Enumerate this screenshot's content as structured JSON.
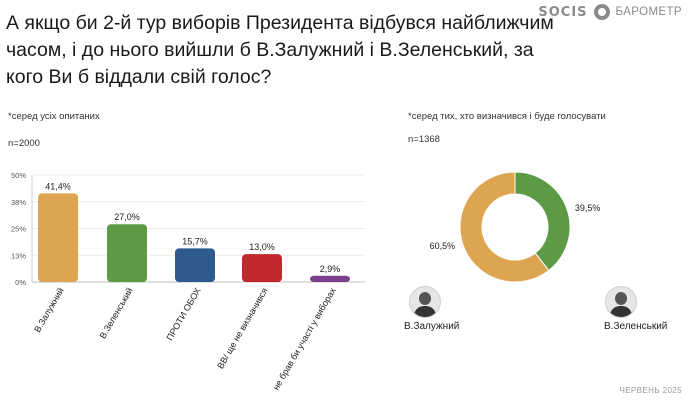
{
  "header": {
    "title": "А якщо би 2-й тур виборів Президента відбувся найближчим часом, і до нього вийшли б В.Залужний і В.Зеленський, за кого Ви б віддали свій голос?",
    "logo_socis": "SOCIS",
    "logo_barometr": "БАРОМЕТР"
  },
  "left_panel": {
    "note": "*серед усіх опитаних",
    "n": "n=2000"
  },
  "right_panel": {
    "note": "*серед тих, хто визначився і буде голосувати",
    "n": "n=1368"
  },
  "footer": "ЧЕРВЕНЬ 2025",
  "chart_data": [
    {
      "type": "bar",
      "y_ticks": [
        "0%",
        "13%",
        "25%",
        "38%",
        "50%"
      ],
      "ylim": [
        0,
        50
      ],
      "categories": [
        "В.Залужний",
        "В.Зеленський",
        "ПРОТИ ОБОХ",
        "ВВ/ ще не визначився",
        "не брав би участі у виборах"
      ],
      "values": [
        41.4,
        27.0,
        15.7,
        13.0,
        2.9
      ],
      "labels": [
        "41,4%",
        "27,0%",
        "15,7%",
        "13,0%",
        "2,9%"
      ],
      "colors": [
        "#DDA54F",
        "#5C9A45",
        "#2E5A8F",
        "#C2272E",
        "#7B3F8C"
      ]
    },
    {
      "type": "pie",
      "categories": [
        "В.Залужний",
        "В.Зеленський"
      ],
      "values": [
        60.5,
        39.5
      ],
      "labels": [
        "60,5%",
        "39,5%"
      ],
      "colors": [
        "#DDA54F",
        "#5C9A45"
      ]
    }
  ]
}
